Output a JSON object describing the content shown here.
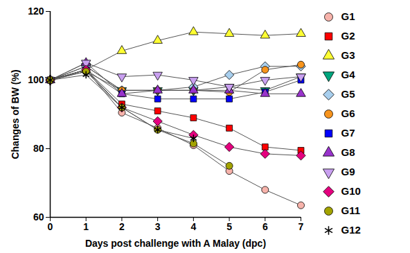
{
  "chart_data": {
    "type": "line",
    "x_label": "Days post challenge with A Malay (dpc)",
    "y_label": "Changes of BW (%)",
    "x": [
      0,
      1,
      2,
      3,
      4,
      5,
      6,
      7
    ],
    "xlim": [
      0,
      7
    ],
    "xticks": [
      0,
      1,
      2,
      3,
      4,
      5,
      6,
      7
    ],
    "ylim": [
      60,
      120
    ],
    "yticks": [
      60,
      80,
      100,
      120
    ],
    "grid": false,
    "legend": "right",
    "series": [
      {
        "name": "G1",
        "color": "#f7b3ab",
        "marker": "circle",
        "values": [
          100,
          103,
          90.5,
          86,
          81,
          73.5,
          68,
          63.5
        ]
      },
      {
        "name": "G2",
        "color": "#ff0000",
        "marker": "square",
        "values": [
          100,
          103,
          93,
          91,
          89,
          86,
          80.5,
          79.5
        ]
      },
      {
        "name": "G3",
        "color": "#ffff33",
        "marker": "triangle",
        "values": [
          100,
          103,
          108.5,
          111.5,
          114,
          113.5,
          113,
          113.5
        ]
      },
      {
        "name": "G4",
        "color": "#00a67e",
        "marker": "triangle-down",
        "values": [
          100,
          104,
          97,
          97,
          97,
          98,
          97,
          101
        ]
      },
      {
        "name": "G5",
        "color": "#a8cfee",
        "marker": "diamond",
        "values": [
          100,
          104,
          97,
          97,
          98,
          101.5,
          104,
          104
        ]
      },
      {
        "name": "G6",
        "color": "#f7941d",
        "marker": "circle",
        "values": [
          100,
          102.5,
          97,
          97,
          97,
          96.5,
          103,
          104.5
        ]
      },
      {
        "name": "G7",
        "color": "#0000ff",
        "marker": "square",
        "values": [
          100,
          103,
          96,
          94.5,
          94.5,
          94.5,
          96.5,
          100
        ]
      },
      {
        "name": "G8",
        "color": "#9933cc",
        "marker": "triangle",
        "values": [
          100,
          105,
          96,
          97,
          97,
          97,
          96,
          96
        ]
      },
      {
        "name": "G9",
        "color": "#c9a0f0",
        "marker": "triangle-down",
        "values": [
          100,
          105,
          101,
          101.5,
          100,
          98,
          100,
          101
        ]
      },
      {
        "name": "G10",
        "color": "#e5007e",
        "marker": "diamond",
        "values": [
          100,
          103,
          92,
          88,
          84,
          80.5,
          78.5,
          78
        ]
      },
      {
        "name": "G11",
        "color": "#a3a300",
        "marker": "circle",
        "values": [
          100,
          102.5,
          92,
          85.5,
          81.5,
          75,
          null,
          null
        ]
      },
      {
        "name": "G12",
        "color": "#000000",
        "marker": "asterisk",
        "values": [
          100,
          101.5,
          92,
          85.5,
          83,
          null,
          null,
          null
        ]
      }
    ]
  }
}
